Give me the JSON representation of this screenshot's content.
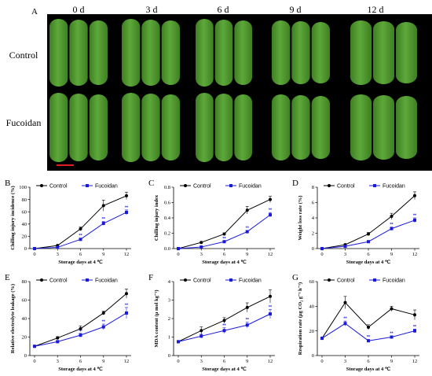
{
  "photo": {
    "label": "A",
    "days": [
      "0 d",
      "3 d",
      "6 d",
      "9 d",
      "12 d"
    ],
    "rows": [
      "Control",
      "Fucoidan"
    ],
    "colors": {
      "background": "#000000",
      "cucumber": "#5da83a",
      "cucumber_dark": "#3f7f22",
      "scalebar": "#e02020"
    }
  },
  "chart_data": [
    {
      "type": "line",
      "label": "B",
      "x": [
        0,
        3,
        6,
        9,
        12
      ],
      "series": [
        {
          "name": "Control",
          "values": [
            0,
            5,
            32,
            70,
            86
          ],
          "err": [
            0,
            1,
            3,
            9,
            6
          ],
          "sig": [
            "",
            "",
            "",
            "",
            ""
          ]
        },
        {
          "name": "Fucoidan",
          "values": [
            0,
            2,
            15,
            41,
            59
          ],
          "err": [
            0,
            0.5,
            2,
            3,
            4
          ],
          "sig": [
            "",
            "",
            "**",
            "**",
            "**"
          ]
        }
      ],
      "ylabel": "Chilling injury incidence (%)",
      "xlabel": "Storage days at 4 ℃",
      "yticks": [
        "0",
        "20",
        "40",
        "60",
        "80",
        "100"
      ],
      "ylim": [
        0,
        100
      ]
    },
    {
      "type": "line",
      "label": "C",
      "x": [
        0,
        3,
        6,
        9,
        12
      ],
      "series": [
        {
          "name": "Control",
          "values": [
            0,
            0.08,
            0.19,
            0.5,
            0.64
          ],
          "err": [
            0,
            0.01,
            0.015,
            0.05,
            0.04
          ],
          "sig": [
            "",
            "",
            "",
            "",
            ""
          ]
        },
        {
          "name": "Fucoidan",
          "values": [
            0,
            0.02,
            0.09,
            0.22,
            0.44
          ],
          "err": [
            0,
            0.005,
            0.01,
            0.015,
            0.03
          ],
          "sig": [
            "",
            "",
            "**",
            "**",
            "**"
          ]
        }
      ],
      "ylabel": "Chilling injury index",
      "xlabel": "Storage days at 4 ℃",
      "yticks": [
        "0.0",
        "0.2",
        "0.4",
        "0.6",
        "0.8"
      ],
      "ylim": [
        0,
        0.8
      ]
    },
    {
      "type": "line",
      "label": "D",
      "x": [
        0,
        3,
        6,
        9,
        12
      ],
      "series": [
        {
          "name": "Control",
          "values": [
            0,
            0.5,
            1.9,
            4.2,
            6.9
          ],
          "err": [
            0,
            0.1,
            0.2,
            0.4,
            0.5
          ],
          "sig": [
            "",
            "",
            "",
            "",
            ""
          ]
        },
        {
          "name": "Fucoidan",
          "values": [
            0,
            0.3,
            0.9,
            2.6,
            3.7
          ],
          "err": [
            0,
            0.05,
            0.1,
            0.2,
            0.3
          ],
          "sig": [
            "",
            "",
            "",
            "**",
            "**"
          ]
        }
      ],
      "ylabel": "Weight loss rate (%)",
      "xlabel": "Storage days at 4 ℃",
      "yticks": [
        "0",
        "2",
        "4",
        "6",
        "8"
      ],
      "ylim": [
        0,
        8
      ]
    },
    {
      "type": "line",
      "label": "E",
      "x": [
        0,
        3,
        6,
        9,
        12
      ],
      "series": [
        {
          "name": "Control",
          "values": [
            10,
            19,
            29,
            46,
            67
          ],
          "err": [
            1,
            1.5,
            3,
            2,
            5
          ],
          "sig": [
            "",
            "",
            "",
            "",
            ""
          ]
        },
        {
          "name": "Fucoidan",
          "values": [
            10,
            15,
            22,
            31,
            46
          ],
          "err": [
            1,
            1,
            2,
            3,
            6
          ],
          "sig": [
            "",
            "",
            "**",
            "**",
            "**"
          ]
        }
      ],
      "ylabel": "Relative electrolyte leakage (%)",
      "xlabel": "Storage days at 4 ℃",
      "yticks": [
        "0",
        "20",
        "40",
        "60",
        "80"
      ],
      "ylim": [
        0,
        80
      ]
    },
    {
      "type": "line",
      "label": "F",
      "x": [
        0,
        3,
        6,
        9,
        12
      ],
      "series": [
        {
          "name": "Control",
          "values": [
            0.75,
            1.35,
            1.9,
            2.6,
            3.2
          ],
          "err": [
            0.05,
            0.2,
            0.15,
            0.25,
            0.35
          ],
          "sig": [
            "",
            "",
            "",
            "",
            ""
          ]
        },
        {
          "name": "Fucoidan",
          "values": [
            0.75,
            1.05,
            1.35,
            1.65,
            2.25
          ],
          "err": [
            0.05,
            0.1,
            0.15,
            0.15,
            0.25
          ],
          "sig": [
            "",
            "",
            "**",
            "**",
            "**"
          ]
        }
      ],
      "ylabel": "MDA content (μ mol kg⁻¹)",
      "xlabel": "Storage days at 4 ℃",
      "yticks": [
        "0",
        "1",
        "2",
        "3",
        "4"
      ],
      "ylim": [
        0,
        4
      ]
    },
    {
      "type": "line",
      "label": "G",
      "x": [
        0,
        3,
        6,
        9,
        12
      ],
      "series": [
        {
          "name": "Control",
          "values": [
            14,
            43,
            23,
            38,
            33
          ],
          "err": [
            1,
            5,
            2,
            2,
            4
          ],
          "sig": [
            "",
            "",
            "",
            "",
            ""
          ]
        },
        {
          "name": "Fucoidan",
          "values": [
            14,
            26,
            12,
            15,
            20
          ],
          "err": [
            1,
            2,
            1,
            1,
            1.5
          ],
          "sig": [
            "",
            "**",
            "**",
            "**",
            "**"
          ]
        }
      ],
      "ylabel": "Respiration rate (μg CO₂ g⁻¹ h⁻¹)",
      "xlabel": "Storage days at 4 ℃",
      "yticks": [
        "0",
        "20",
        "40",
        "60"
      ],
      "ylim": [
        0,
        60
      ]
    }
  ],
  "style": {
    "control_color": "#000000",
    "fucoidan_color": "#1a1adb"
  }
}
